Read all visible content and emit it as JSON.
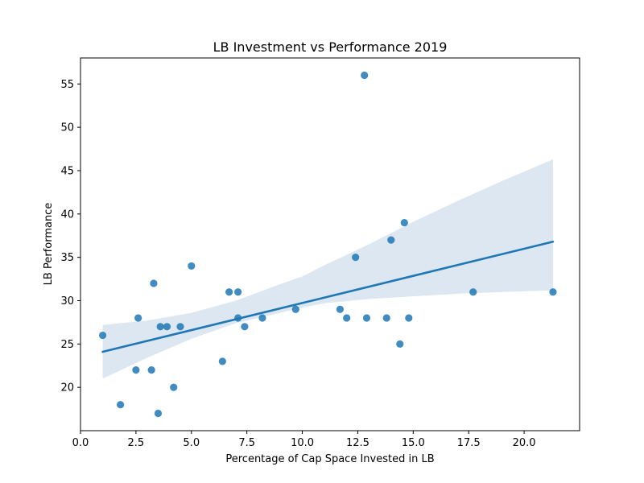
{
  "chart_data": {
    "type": "scatter",
    "title": "LB Investment vs Performance 2019",
    "xlabel": "Percentage of Cap Space Invested in LB",
    "ylabel": "LB Performance",
    "xlim": [
      0.0,
      22.5
    ],
    "ylim": [
      15.0,
      58.0
    ],
    "x_ticks": [
      0.0,
      2.5,
      5.0,
      7.5,
      10.0,
      12.5,
      15.0,
      17.5,
      20.0
    ],
    "x_tick_labels": [
      "0.0",
      "2.5",
      "5.0",
      "7.5",
      "10.0",
      "12.5",
      "15.0",
      "17.5",
      "20.0"
    ],
    "y_ticks": [
      20,
      25,
      30,
      35,
      40,
      45,
      50,
      55
    ],
    "y_tick_labels": [
      "20",
      "25",
      "30",
      "35",
      "40",
      "45",
      "50",
      "55"
    ],
    "grid": false,
    "points": [
      {
        "x": 1.0,
        "y": 26
      },
      {
        "x": 1.8,
        "y": 18
      },
      {
        "x": 2.5,
        "y": 22
      },
      {
        "x": 2.6,
        "y": 28
      },
      {
        "x": 3.2,
        "y": 22
      },
      {
        "x": 3.3,
        "y": 32
      },
      {
        "x": 3.5,
        "y": 17
      },
      {
        "x": 3.6,
        "y": 27
      },
      {
        "x": 3.9,
        "y": 27
      },
      {
        "x": 4.2,
        "y": 20
      },
      {
        "x": 4.5,
        "y": 27
      },
      {
        "x": 5.0,
        "y": 34
      },
      {
        "x": 6.4,
        "y": 23
      },
      {
        "x": 6.7,
        "y": 31
      },
      {
        "x": 7.1,
        "y": 31
      },
      {
        "x": 7.1,
        "y": 28
      },
      {
        "x": 7.4,
        "y": 27
      },
      {
        "x": 8.2,
        "y": 28
      },
      {
        "x": 9.7,
        "y": 29
      },
      {
        "x": 11.7,
        "y": 29
      },
      {
        "x": 12.0,
        "y": 28
      },
      {
        "x": 12.4,
        "y": 35
      },
      {
        "x": 12.8,
        "y": 56
      },
      {
        "x": 12.9,
        "y": 28
      },
      {
        "x": 13.8,
        "y": 28
      },
      {
        "x": 14.0,
        "y": 37
      },
      {
        "x": 14.4,
        "y": 25
      },
      {
        "x": 14.6,
        "y": 39
      },
      {
        "x": 14.8,
        "y": 28
      },
      {
        "x": 17.7,
        "y": 31
      },
      {
        "x": 21.3,
        "y": 31
      }
    ],
    "regression": {
      "x": [
        1.0,
        21.3
      ],
      "y": [
        24.1,
        36.8
      ]
    },
    "confidence_band": {
      "x": [
        1.0,
        3.0,
        5.0,
        7.0,
        9.0,
        10.0,
        11.0,
        13.0,
        15.0,
        17.0,
        19.0,
        21.3
      ],
      "lower": [
        21.0,
        23.4,
        25.6,
        27.4,
        28.6,
        29.2,
        29.7,
        30.2,
        30.5,
        30.8,
        31.0,
        31.2
      ],
      "upper": [
        27.2,
        27.7,
        28.6,
        30.0,
        31.9,
        32.8,
        34.1,
        36.5,
        39.1,
        41.5,
        43.8,
        46.3
      ]
    },
    "colors": {
      "points": "#1f77b4",
      "line": "#1f77b4",
      "band": "#dce7f2"
    }
  }
}
